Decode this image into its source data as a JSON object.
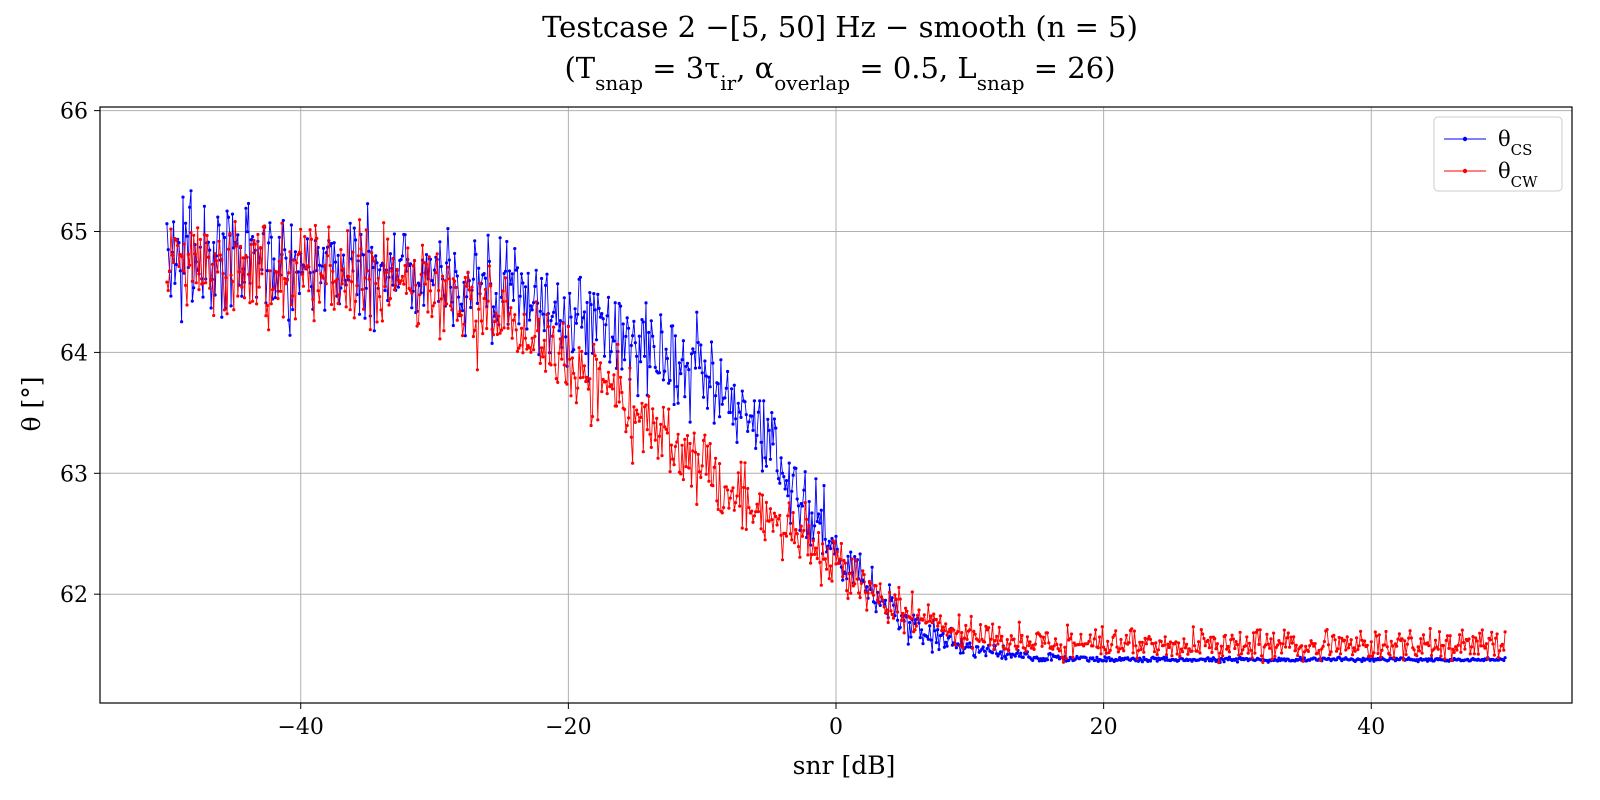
{
  "chart_data": {
    "type": "line",
    "title": "Testcase 2 −[5, 50] Hz − smooth (n = 5)",
    "subtitle": "(T_snap = 3τ_ir,   α_overlap = 0.5,   L_snap = 26)",
    "xlabel": "snr [dB]",
    "ylabel": "θ [°]",
    "xlim": [
      -55,
      55
    ],
    "ylim": [
      61.1,
      66.03
    ],
    "xticks": [
      -40,
      -20,
      0,
      20,
      40
    ],
    "xtick_labels": [
      "−40",
      "−20",
      "0",
      "20",
      "40"
    ],
    "yticks": [
      62,
      63,
      64,
      65,
      66
    ],
    "ytick_labels": [
      "62",
      "63",
      "64",
      "65",
      "66"
    ],
    "grid": true,
    "legend_position": "top-right",
    "x_range": [
      -50,
      50
    ],
    "x_step": 0.1,
    "series": [
      {
        "name": "θ_CS",
        "color": "#0000ff",
        "trend_knots": [
          [
            -50,
            64.8
          ],
          [
            -40,
            64.75
          ],
          [
            -30,
            64.65
          ],
          [
            -25,
            64.5
          ],
          [
            -20,
            64.3
          ],
          [
            -15,
            64.1
          ],
          [
            -10,
            63.8
          ],
          [
            -5,
            63.2
          ],
          [
            0,
            62.4
          ],
          [
            5,
            61.75
          ],
          [
            10,
            61.55
          ],
          [
            15,
            61.48
          ],
          [
            20,
            61.46
          ],
          [
            50,
            61.46
          ]
        ],
        "noise_amplitude_knots": [
          [
            -50,
            0.42
          ],
          [
            -30,
            0.4
          ],
          [
            -15,
            0.36
          ],
          [
            -5,
            0.3
          ],
          [
            2,
            0.2
          ],
          [
            8,
            0.1
          ],
          [
            12,
            0.05
          ],
          [
            18,
            0.02
          ],
          [
            50,
            0.012
          ]
        ]
      },
      {
        "name": "θ_CW",
        "color": "#ff0000",
        "trend_knots": [
          [
            -50,
            64.75
          ],
          [
            -40,
            64.7
          ],
          [
            -30,
            64.5
          ],
          [
            -25,
            64.25
          ],
          [
            -20,
            63.95
          ],
          [
            -15,
            63.5
          ],
          [
            -10,
            63.05
          ],
          [
            -5,
            62.65
          ],
          [
            0,
            62.2
          ],
          [
            5,
            61.85
          ],
          [
            10,
            61.65
          ],
          [
            15,
            61.6
          ],
          [
            20,
            61.58
          ],
          [
            50,
            61.58
          ]
        ],
        "noise_amplitude_knots": [
          [
            -50,
            0.36
          ],
          [
            -25,
            0.32
          ],
          [
            -10,
            0.28
          ],
          [
            0,
            0.2
          ],
          [
            8,
            0.13
          ],
          [
            20,
            0.11
          ],
          [
            50,
            0.1
          ]
        ]
      }
    ]
  }
}
